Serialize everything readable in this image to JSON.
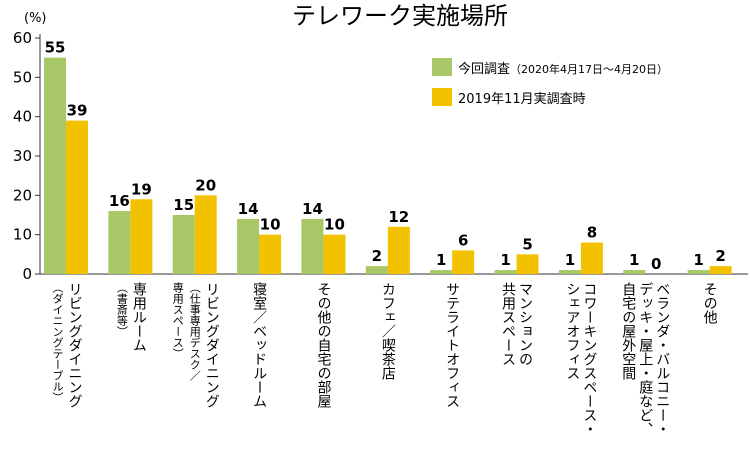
{
  "chart_data": {
    "type": "bar",
    "title": "テレワーク実施場所",
    "ylabel": "(%)",
    "ylim": [
      0,
      60
    ],
    "yticks": [
      0,
      10,
      20,
      30,
      40,
      50,
      60
    ],
    "legend_position": "top-right",
    "categories": [
      "リビングダイニング（ダイニングテーブル）",
      "専用ルーム（書斎等）",
      "リビングダイニング（仕事専用デスク／専用スペース）",
      "寝室／ベッドルーム",
      "その他の自宅の部屋",
      "カフェ／喫茶店",
      "サテライトオフィス",
      "マンションの共用スペース",
      "コワーキングスペース・シェアオフィス",
      "ベランダ・バルコニー・デッキ・屋上・庭など、自宅の屋外空間",
      "その他"
    ],
    "category_lines": [
      [
        {
          "t": "リビングダイニング"
        },
        {
          "t": "（ダイニングテーブル）",
          "small": true
        }
      ],
      [
        {
          "t": "専用ルーム"
        },
        {
          "t": "（書斎等）",
          "small": true
        }
      ],
      [
        {
          "t": "リビングダイニング"
        },
        {
          "t": "（仕事専用デスク／",
          "small": true
        },
        {
          "t": "専用スペース）",
          "small": true
        }
      ],
      [
        {
          "t": "寝室／ベッドルーム"
        }
      ],
      [
        {
          "t": "その他の自宅の部屋"
        }
      ],
      [
        {
          "t": "カフェ／喫茶店"
        }
      ],
      [
        {
          "t": "サテライトオフィス"
        }
      ],
      [
        {
          "t": "マンションの"
        },
        {
          "t": "共用スペース"
        }
      ],
      [
        {
          "t": "コワーキングスペース・"
        },
        {
          "t": "シェアオフィス"
        }
      ],
      [
        {
          "t": "ベランダ・バルコニー・"
        },
        {
          "t": "デッキ・屋上・庭など、"
        },
        {
          "t": "自宅の屋外空間"
        }
      ],
      [
        {
          "t": "その他"
        }
      ]
    ],
    "series": [
      {
        "name": "今回調査",
        "name_note": "（2020年4月17日〜4月20日）",
        "color": "#a8c766",
        "values": [
          55,
          16,
          15,
          14,
          14,
          2,
          1,
          1,
          1,
          1,
          1
        ]
      },
      {
        "name": "2019年11月実調査時",
        "name_note": "",
        "color": "#f2c200",
        "values": [
          39,
          19,
          20,
          10,
          10,
          12,
          6,
          5,
          8,
          0,
          2
        ]
      }
    ]
  }
}
